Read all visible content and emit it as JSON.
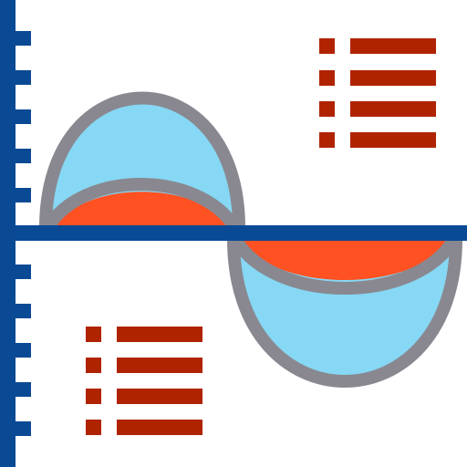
{
  "icon": {
    "name": "sine-wave-chart-icon",
    "colors": {
      "axis": "#0a4a94",
      "wave_fill": "#86d8f4",
      "inner_fill": "#ff5122",
      "outline": "#898890",
      "legend": "#b02300",
      "background": "#ffffff"
    },
    "legend_top_rows": 4,
    "legend_bottom_rows": 4,
    "axis_ticks_above": 5,
    "axis_ticks_below": 5
  }
}
